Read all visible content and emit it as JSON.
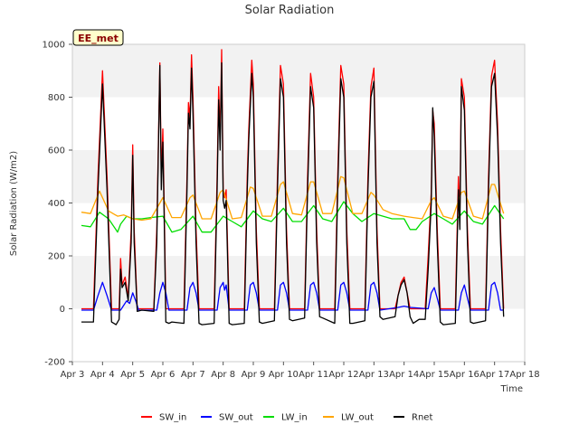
{
  "chart_data": {
    "type": "line",
    "title": "Solar Radiation",
    "xlabel": "Time",
    "ylabel": "Solar Radiation (W/m2)",
    "badge": "EE_met",
    "ylim": [
      -200,
      1000
    ],
    "yticks": [
      -200,
      0,
      200,
      400,
      600,
      800,
      1000
    ],
    "xlim": [
      3,
      18
    ],
    "xticks": [
      3,
      4,
      5,
      6,
      7,
      8,
      9,
      10,
      11,
      12,
      13,
      14,
      15,
      16,
      17,
      18
    ],
    "xtick_labels": [
      "Apr 3",
      "Apr 4",
      "Apr 5",
      "Apr 6",
      "Apr 7",
      "Apr 8",
      "Apr 9",
      "Apr 10",
      "Apr 11",
      "Apr 12",
      "Apr 13",
      "Apr 14",
      "Apr 15",
      "Apr 16",
      "Apr 17",
      "Apr 18"
    ],
    "grid": "horizontal bands",
    "legend_position": "bottom",
    "series": [
      {
        "name": "SW_in",
        "color": "#ff0000",
        "x": [
          3.3,
          3.7,
          3.85,
          4.0,
          4.15,
          4.3,
          4.55,
          4.6,
          4.65,
          4.75,
          4.85,
          4.95,
          5.0,
          5.05,
          5.15,
          5.3,
          5.7,
          5.8,
          5.9,
          5.95,
          6.0,
          6.05,
          6.1,
          6.2,
          6.3,
          6.7,
          6.8,
          6.85,
          6.9,
          6.95,
          7.0,
          7.1,
          7.2,
          7.3,
          7.7,
          7.8,
          7.85,
          7.9,
          7.95,
          8.0,
          8.05,
          8.1,
          8.2,
          8.3,
          8.7,
          8.8,
          8.85,
          8.95,
          9.0,
          9.1,
          9.2,
          9.3,
          9.7,
          9.8,
          9.9,
          10.0,
          10.1,
          10.2,
          10.3,
          10.7,
          10.8,
          10.9,
          11.0,
          11.1,
          11.2,
          11.3,
          11.7,
          11.8,
          11.9,
          12.0,
          12.1,
          12.2,
          12.3,
          12.7,
          12.8,
          12.9,
          13.0,
          13.1,
          13.2,
          13.3,
          13.7,
          13.8,
          13.9,
          14.0,
          14.1,
          14.2,
          14.3,
          14.7,
          14.8,
          14.9,
          14.95,
          15.0,
          15.1,
          15.2,
          15.3,
          15.7,
          15.8,
          15.85,
          15.9,
          16.0,
          16.1,
          16.2,
          16.3,
          16.7,
          16.8,
          16.9,
          17.0,
          17.1,
          17.2,
          17.3
        ],
        "values": [
          0,
          0,
          500,
          900,
          500,
          0,
          0,
          190,
          90,
          120,
          40,
          300,
          620,
          300,
          0,
          0,
          0,
          300,
          930,
          500,
          680,
          350,
          0,
          0,
          0,
          0,
          500,
          780,
          720,
          960,
          800,
          300,
          0,
          0,
          0,
          500,
          840,
          650,
          980,
          450,
          420,
          450,
          0,
          0,
          0,
          500,
          680,
          940,
          850,
          300,
          0,
          0,
          0,
          500,
          920,
          850,
          300,
          0,
          0,
          0,
          500,
          890,
          800,
          300,
          0,
          0,
          0,
          500,
          920,
          850,
          300,
          0,
          0,
          0,
          500,
          840,
          910,
          300,
          0,
          0,
          0,
          50,
          100,
          120,
          60,
          0,
          0,
          0,
          200,
          440,
          750,
          700,
          300,
          0,
          0,
          0,
          500,
          350,
          870,
          800,
          300,
          0,
          0,
          0,
          500,
          880,
          940,
          700,
          300,
          0
        ]
      },
      {
        "name": "SW_out",
        "color": "#0000ff",
        "x": [
          3.3,
          3.7,
          3.85,
          4.0,
          4.15,
          4.3,
          4.6,
          4.8,
          4.9,
          5.0,
          5.1,
          5.2,
          5.8,
          5.9,
          6.0,
          6.1,
          6.2,
          6.8,
          6.9,
          7.0,
          7.1,
          7.2,
          7.8,
          7.9,
          8.0,
          8.05,
          8.1,
          8.2,
          8.8,
          8.9,
          9.0,
          9.1,
          9.2,
          9.8,
          9.9,
          10.0,
          10.1,
          10.2,
          10.8,
          10.9,
          11.0,
          11.1,
          11.2,
          11.8,
          11.9,
          12.0,
          12.1,
          12.2,
          12.8,
          12.9,
          13.0,
          13.1,
          13.2,
          13.8,
          14.0,
          14.2,
          14.8,
          14.9,
          15.0,
          15.1,
          15.2,
          15.8,
          15.9,
          16.0,
          16.1,
          16.2,
          16.8,
          16.9,
          17.0,
          17.1,
          17.2,
          17.3
        ],
        "values": [
          -5,
          -5,
          50,
          100,
          50,
          -5,
          -5,
          30,
          20,
          60,
          30,
          -5,
          -5,
          60,
          100,
          60,
          -5,
          -5,
          80,
          100,
          60,
          -5,
          -5,
          80,
          100,
          70,
          90,
          -5,
          -5,
          90,
          100,
          60,
          -5,
          -5,
          90,
          100,
          60,
          -5,
          -5,
          90,
          100,
          60,
          -5,
          -5,
          90,
          100,
          60,
          -5,
          -5,
          90,
          100,
          60,
          -5,
          5,
          10,
          5,
          0,
          60,
          80,
          40,
          -5,
          -5,
          60,
          90,
          40,
          -5,
          -5,
          90,
          100,
          60,
          -5,
          -5
        ]
      },
      {
        "name": "LW_in",
        "color": "#00dd00",
        "x": [
          3.3,
          3.6,
          3.9,
          4.2,
          4.5,
          4.6,
          4.8,
          5.0,
          5.3,
          5.6,
          6.0,
          6.3,
          6.6,
          7.0,
          7.3,
          7.6,
          8.0,
          8.3,
          8.6,
          9.0,
          9.3,
          9.6,
          10.0,
          10.3,
          10.6,
          11.0,
          11.3,
          11.6,
          12.0,
          12.3,
          12.6,
          13.0,
          13.3,
          13.6,
          14.0,
          14.2,
          14.4,
          14.6,
          15.0,
          15.3,
          15.6,
          16.0,
          16.3,
          16.6,
          17.0,
          17.3
        ],
        "values": [
          315,
          310,
          365,
          340,
          290,
          320,
          350,
          340,
          340,
          345,
          350,
          290,
          300,
          350,
          290,
          290,
          350,
          330,
          310,
          370,
          340,
          330,
          380,
          330,
          330,
          390,
          340,
          330,
          405,
          360,
          330,
          360,
          350,
          340,
          340,
          300,
          300,
          330,
          360,
          340,
          320,
          370,
          330,
          320,
          390,
          340
        ]
      },
      {
        "name": "LW_out",
        "color": "#ffa500",
        "x": [
          3.3,
          3.6,
          3.9,
          4.2,
          4.5,
          4.7,
          5.0,
          5.3,
          5.6,
          5.9,
          6.0,
          6.3,
          6.6,
          6.9,
          7.0,
          7.3,
          7.6,
          7.9,
          8.0,
          8.3,
          8.6,
          8.9,
          9.0,
          9.3,
          9.6,
          9.9,
          10.0,
          10.3,
          10.6,
          10.9,
          11.0,
          11.3,
          11.6,
          11.9,
          12.0,
          12.3,
          12.6,
          12.9,
          13.0,
          13.3,
          13.6,
          14.0,
          14.3,
          14.6,
          14.9,
          15.0,
          15.3,
          15.6,
          15.9,
          16.0,
          16.3,
          16.6,
          16.9,
          17.0,
          17.3
        ],
        "values": [
          365,
          360,
          445,
          370,
          350,
          355,
          340,
          335,
          340,
          400,
          420,
          345,
          345,
          420,
          430,
          340,
          340,
          440,
          450,
          340,
          345,
          460,
          455,
          350,
          350,
          470,
          480,
          360,
          355,
          480,
          480,
          360,
          360,
          500,
          495,
          360,
          360,
          440,
          430,
          375,
          360,
          350,
          345,
          340,
          410,
          420,
          350,
          340,
          440,
          445,
          350,
          340,
          470,
          470,
          360
        ]
      },
      {
        "name": "Rnet",
        "color": "#000000",
        "x": [
          3.3,
          3.7,
          3.85,
          4.0,
          4.15,
          4.3,
          4.45,
          4.55,
          4.6,
          4.65,
          4.75,
          4.85,
          4.95,
          5.0,
          5.05,
          5.15,
          5.3,
          5.7,
          5.8,
          5.9,
          5.95,
          6.0,
          6.05,
          6.1,
          6.2,
          6.3,
          6.7,
          6.8,
          6.85,
          6.9,
          6.95,
          7.0,
          7.1,
          7.2,
          7.3,
          7.7,
          7.8,
          7.85,
          7.9,
          7.95,
          8.0,
          8.05,
          8.1,
          8.2,
          8.3,
          8.7,
          8.8,
          8.85,
          8.95,
          9.0,
          9.1,
          9.2,
          9.3,
          9.7,
          9.8,
          9.9,
          10.0,
          10.1,
          10.2,
          10.3,
          10.7,
          10.8,
          10.9,
          11.0,
          11.1,
          11.2,
          11.3,
          11.7,
          11.8,
          11.9,
          12.0,
          12.1,
          12.2,
          12.3,
          12.7,
          12.8,
          12.9,
          13.0,
          13.1,
          13.2,
          13.3,
          13.5,
          13.7,
          13.8,
          13.9,
          14.0,
          14.1,
          14.2,
          14.3,
          14.5,
          14.7,
          14.8,
          14.9,
          14.95,
          15.0,
          15.1,
          15.2,
          15.3,
          15.7,
          15.8,
          15.85,
          15.9,
          16.0,
          16.1,
          16.2,
          16.3,
          16.7,
          16.8,
          16.9,
          17.0,
          17.1,
          17.2,
          17.3
        ],
        "values": [
          -50,
          -50,
          450,
          850,
          450,
          -50,
          -60,
          -40,
          150,
          80,
          100,
          30,
          250,
          580,
          250,
          -10,
          -5,
          -10,
          250,
          920,
          450,
          630,
          300,
          -50,
          -55,
          -50,
          -55,
          450,
          740,
          680,
          910,
          740,
          250,
          -55,
          -60,
          -55,
          450,
          790,
          600,
          930,
          410,
          380,
          410,
          -55,
          -60,
          -55,
          450,
          640,
          890,
          800,
          250,
          -50,
          -55,
          -45,
          450,
          870,
          800,
          250,
          -40,
          -45,
          -35,
          450,
          840,
          760,
          250,
          -30,
          -35,
          -55,
          450,
          870,
          800,
          250,
          -55,
          -55,
          -45,
          450,
          800,
          860,
          250,
          -30,
          -40,
          -35,
          -30,
          50,
          90,
          110,
          60,
          -30,
          -55,
          -40,
          -40,
          150,
          400,
          760,
          650,
          250,
          -50,
          -60,
          -55,
          450,
          300,
          840,
          750,
          250,
          -50,
          -55,
          -45,
          450,
          840,
          890,
          650,
          250,
          -30
        ]
      }
    ]
  }
}
